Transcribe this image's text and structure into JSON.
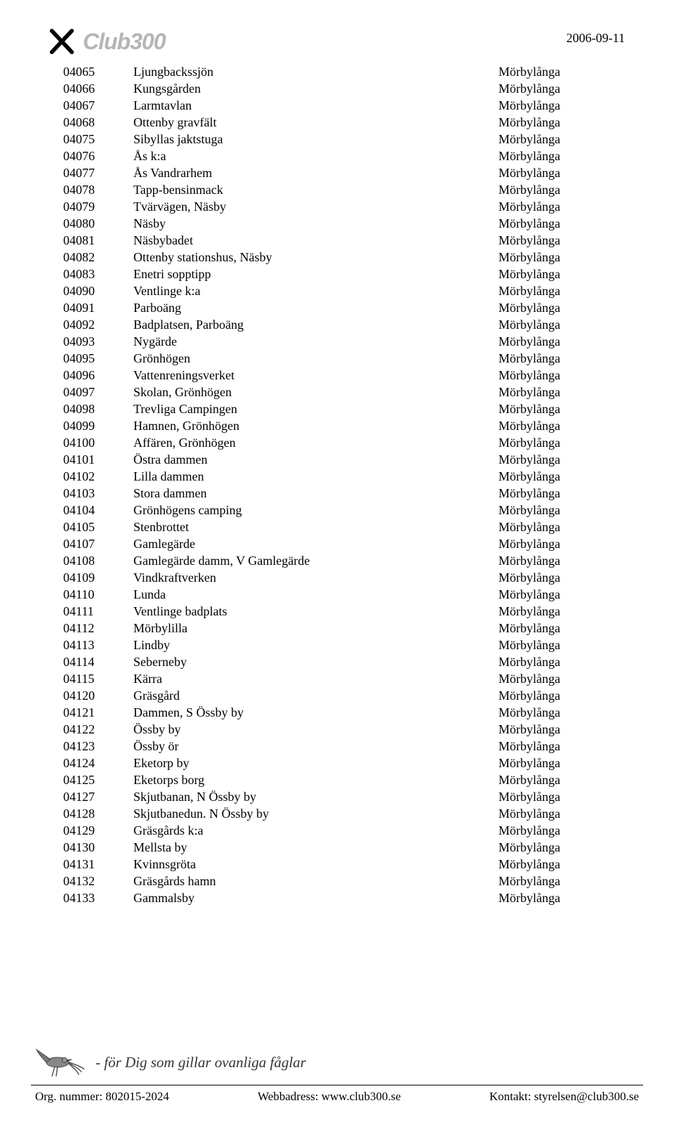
{
  "date": "2006-09-11",
  "logo": {
    "brand": "Club300"
  },
  "kommun": "Mörbylånga",
  "rows": [
    {
      "code": "04065",
      "name": "Ljungbackssjön"
    },
    {
      "code": "04066",
      "name": "Kungsgården"
    },
    {
      "code": "04067",
      "name": "Larmtavlan"
    },
    {
      "code": "04068",
      "name": "Ottenby gravfält"
    },
    {
      "code": "04075",
      "name": "Sibyllas jaktstuga"
    },
    {
      "code": "04076",
      "name": "Ås k:a"
    },
    {
      "code": "04077",
      "name": "Ås Vandrarhem"
    },
    {
      "code": "04078",
      "name": "Tapp-bensinmack"
    },
    {
      "code": "04079",
      "name": "Tvärvägen, Näsby"
    },
    {
      "code": "04080",
      "name": "Näsby"
    },
    {
      "code": "04081",
      "name": "Näsbybadet"
    },
    {
      "code": "04082",
      "name": "Ottenby stationshus, Näsby"
    },
    {
      "code": "04083",
      "name": "Enetri sopptipp"
    },
    {
      "code": "04090",
      "name": "Ventlinge k:a"
    },
    {
      "code": "04091",
      "name": "Parboäng"
    },
    {
      "code": "04092",
      "name": "Badplatsen, Parboäng"
    },
    {
      "code": "04093",
      "name": "Nygärde"
    },
    {
      "code": "04095",
      "name": "Grönhögen"
    },
    {
      "code": "04096",
      "name": "Vattenreningsverket"
    },
    {
      "code": "04097",
      "name": "Skolan, Grönhögen"
    },
    {
      "code": "04098",
      "name": "Trevliga Campingen"
    },
    {
      "code": "04099",
      "name": "Hamnen, Grönhögen"
    },
    {
      "code": "04100",
      "name": "Affären, Grönhögen"
    },
    {
      "code": "04101",
      "name": "Östra dammen"
    },
    {
      "code": "04102",
      "name": "Lilla dammen"
    },
    {
      "code": "04103",
      "name": "Stora dammen"
    },
    {
      "code": "04104",
      "name": "Grönhögens camping"
    },
    {
      "code": "04105",
      "name": "Stenbrottet"
    },
    {
      "code": "04107",
      "name": "Gamlegärde"
    },
    {
      "code": "04108",
      "name": "Gamlegärde damm, V Gamlegärde"
    },
    {
      "code": "04109",
      "name": "Vindkraftverken"
    },
    {
      "code": "04110",
      "name": "Lunda"
    },
    {
      "code": "04111",
      "name": "Ventlinge badplats"
    },
    {
      "code": "04112",
      "name": "Mörbylilla"
    },
    {
      "code": "04113",
      "name": "Lindby"
    },
    {
      "code": "04114",
      "name": "Seberneby"
    },
    {
      "code": "04115",
      "name": "Kärra"
    },
    {
      "code": "04120",
      "name": "Gräsgård"
    },
    {
      "code": "04121",
      "name": "Dammen, S Össby by"
    },
    {
      "code": "04122",
      "name": "Össby by"
    },
    {
      "code": "04123",
      "name": "Össby ör"
    },
    {
      "code": "04124",
      "name": "Eketorp by"
    },
    {
      "code": "04125",
      "name": "Eketorps borg"
    },
    {
      "code": "04127",
      "name": "Skjutbanan, N Össby by"
    },
    {
      "code": "04128",
      "name": "Skjutbanedun. N Össby by"
    },
    {
      "code": "04129",
      "name": "Gräsgårds k:a"
    },
    {
      "code": "04130",
      "name": "Mellsta by"
    },
    {
      "code": "04131",
      "name": "Kvinnsgröta"
    },
    {
      "code": "04132",
      "name": "Gräsgårds hamn"
    },
    {
      "code": "04133",
      "name": "Gammalsby"
    }
  ],
  "footer": {
    "tagline": "- för Dig som gillar ovanliga fåglar",
    "org_label": "Org. nummer:",
    "org_value": "802015-2024",
    "web_label": "Webbadress:",
    "web_value": "www.club300.se",
    "contact_label": "Kontakt:",
    "contact_value": "styrelsen@club300.se"
  }
}
